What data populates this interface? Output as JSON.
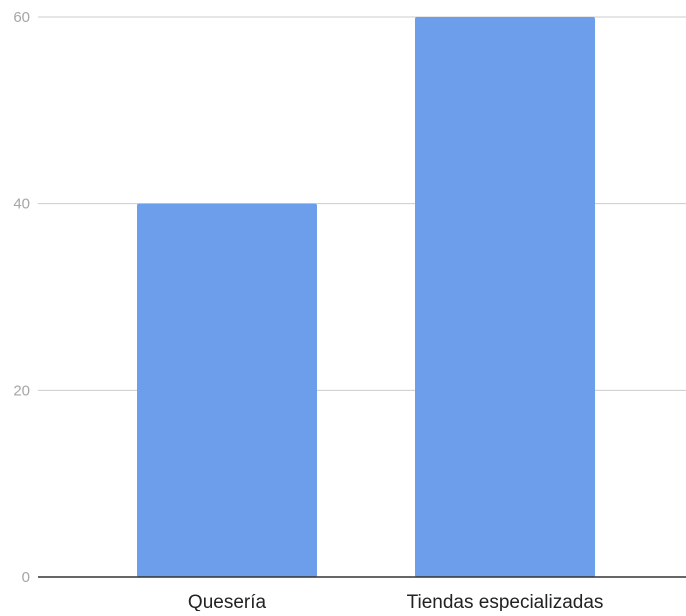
{
  "chart_data": {
    "type": "bar",
    "title": "",
    "xlabel": "",
    "ylabel": "",
    "categories": [
      "Quesería",
      "Tiendas especializadas"
    ],
    "values": [
      40,
      60
    ],
    "ylim": [
      0,
      60
    ],
    "yticks": [
      0,
      20,
      40,
      60
    ],
    "grid": true,
    "legend": "none",
    "colors": {
      "bar": "#6d9eeb"
    }
  }
}
